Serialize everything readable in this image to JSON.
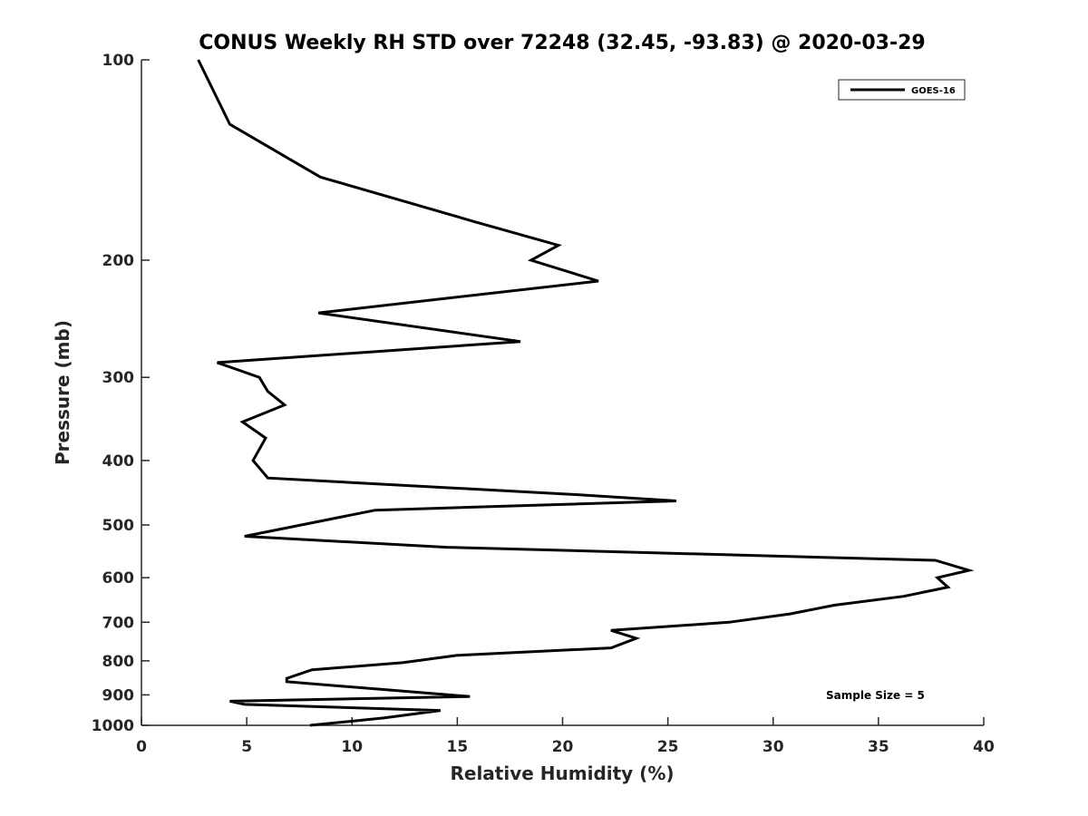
{
  "chart_data": {
    "type": "line",
    "title": "CONUS Weekly RH STD over 72248 (32.45, -93.83) @ 2020-03-29",
    "xlabel": "Relative Humidity (%)",
    "ylabel": "Pressure (mb)",
    "xlim": [
      0,
      40
    ],
    "ylim": [
      1000,
      100
    ],
    "yscale": "log",
    "x_ticks": [
      "0",
      "5",
      "10",
      "15",
      "20",
      "25",
      "30",
      "35",
      "40"
    ],
    "y_ticks": [
      "100",
      "200",
      "300",
      "400",
      "500",
      "600",
      "700",
      "800",
      "900",
      "1000"
    ],
    "grid": false,
    "legend_position": "top-right",
    "annotation": "Sample Size = 5",
    "series": [
      {
        "name": "GOES-16",
        "color": "#000000",
        "points": [
          [
            2.7,
            100
          ],
          [
            4.2,
            125
          ],
          [
            8.5,
            150
          ],
          [
            15.8,
            175
          ],
          [
            19.8,
            190
          ],
          [
            18.5,
            200
          ],
          [
            21.7,
            215
          ],
          [
            8.4,
            240
          ],
          [
            18.0,
            265
          ],
          [
            3.6,
            285
          ],
          [
            5.6,
            300
          ],
          [
            6.0,
            315
          ],
          [
            6.8,
            330
          ],
          [
            4.8,
            350
          ],
          [
            5.9,
            370
          ],
          [
            5.3,
            400
          ],
          [
            6.0,
            425
          ],
          [
            20.6,
            450
          ],
          [
            25.4,
            460
          ],
          [
            11.1,
            475
          ],
          [
            4.9,
            520
          ],
          [
            14.5,
            540
          ],
          [
            37.7,
            565
          ],
          [
            39.3,
            585
          ],
          [
            37.8,
            600
          ],
          [
            38.3,
            620
          ],
          [
            36.2,
            640
          ],
          [
            32.9,
            660
          ],
          [
            30.8,
            680
          ],
          [
            27.9,
            700
          ],
          [
            22.3,
            720
          ],
          [
            23.5,
            740
          ],
          [
            22.3,
            765
          ],
          [
            15.0,
            785
          ],
          [
            12.4,
            805
          ],
          [
            8.1,
            825
          ],
          [
            6.9,
            850
          ],
          [
            6.9,
            860
          ],
          [
            15.6,
            905
          ],
          [
            4.2,
            920
          ],
          [
            4.9,
            930
          ],
          [
            14.2,
            950
          ],
          [
            11.5,
            975
          ],
          [
            8.0,
            1000
          ]
        ]
      }
    ]
  }
}
